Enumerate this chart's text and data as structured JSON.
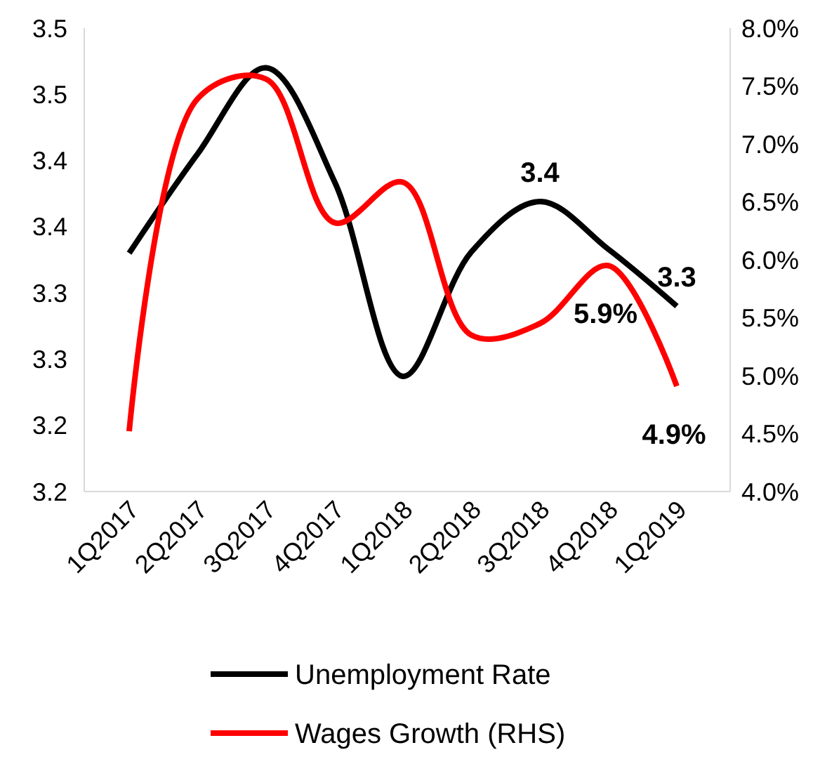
{
  "chart_data": {
    "type": "line",
    "categories": [
      "1Q2017",
      "2Q2017",
      "3Q2017",
      "4Q2017",
      "1Q2018",
      "2Q2018",
      "3Q2018",
      "4Q2018",
      "1Q2019"
    ],
    "series": [
      {
        "name": "Unemployment Rate",
        "color": "#000000",
        "values": [
          3.38,
          3.455,
          3.52,
          3.434,
          3.287,
          3.381,
          3.419,
          3.383,
          3.34
        ],
        "value_labels": [
          null,
          null,
          null,
          null,
          null,
          null,
          "3.4",
          null,
          "3.3"
        ]
      },
      {
        "name": "Wages Growth (RHS)",
        "color": "#ff0000",
        "axis": "y2",
        "values": [
          4.52,
          7.39,
          7.56,
          6.32,
          6.67,
          5.35,
          5.45,
          5.95,
          4.91
        ],
        "value_labels": [
          null,
          null,
          null,
          null,
          null,
          null,
          null,
          "5.9%",
          "4.9%"
        ]
      }
    ],
    "ylim": [
      3.2,
      3.55
    ],
    "yticks": [
      {
        "value": 3.2,
        "label": "3.2"
      },
      {
        "value": 3.25,
        "label": "3.2"
      },
      {
        "value": 3.3,
        "label": "3.3"
      },
      {
        "value": 3.35,
        "label": "3.3"
      },
      {
        "value": 3.4,
        "label": "3.4"
      },
      {
        "value": 3.45,
        "label": "3.4"
      },
      {
        "value": 3.5,
        "label": "3.5"
      },
      {
        "value": 3.55,
        "label": "3.5"
      }
    ],
    "y2lim": [
      4,
      8
    ],
    "y2ticks": [
      {
        "value": 4,
        "label": "4.0%"
      },
      {
        "value": 4.5,
        "label": "4.5%"
      },
      {
        "value": 5,
        "label": "5.0%"
      },
      {
        "value": 5.5,
        "label": "5.5%"
      },
      {
        "value": 6,
        "label": "6.0%"
      },
      {
        "value": 6.5,
        "label": "6.5%"
      },
      {
        "value": 7,
        "label": "7.0%"
      },
      {
        "value": 7.5,
        "label": "7.5%"
      },
      {
        "value": 8,
        "label": "8.0%"
      }
    ],
    "grid": false,
    "legend": "bottom",
    "line_style": "solid"
  }
}
